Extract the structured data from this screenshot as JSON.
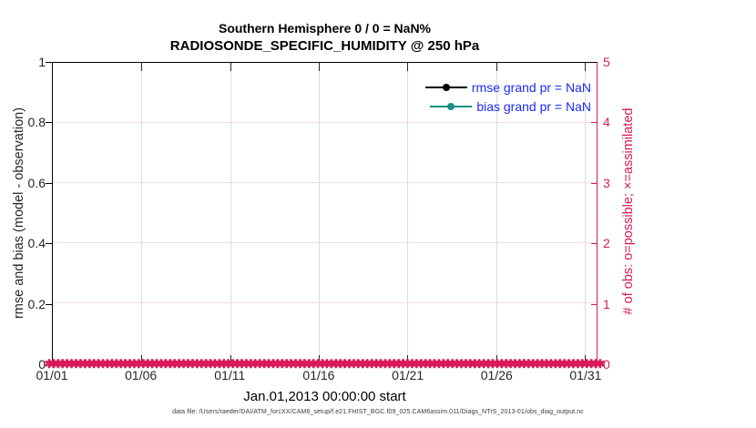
{
  "figure": {
    "footer_note": "data file: /Users/raeder/DAI/ATM_forcXX/CAM6_setup/f.e21.FHIST_BGC.f09_025.CAM6assim.011/Diags_NTrS_2013-01/obs_diag_output.nc"
  },
  "legend": {
    "text_color": "#1A2AF8",
    "items": [
      {
        "label": "rmse grand pr = NaN",
        "color": "#000000",
        "marker": "filled-circle"
      },
      {
        "label": "bias grand pr = NaN",
        "color": "#149087",
        "marker": "filled-circle"
      }
    ]
  },
  "chart_data": {
    "type": "line",
    "title": "Southern Hemisphere 0 / 0 = NaN%",
    "subtitle": "RADIOSONDE_SPECIFIC_HUMIDITY @ 250 hPa",
    "xlabel": "Jan.01,2013 00:00:00 start",
    "x_tick_labels": [
      "01/01",
      "01/06",
      "01/11",
      "01/16",
      "01/21",
      "01/26",
      "01/31"
    ],
    "x_tick_days": [
      0,
      5,
      10,
      15,
      20,
      25,
      30
    ],
    "xlim_days": [
      0,
      30.67
    ],
    "left_axis": {
      "label": "rmse and bias (model - observation)",
      "ticks": [
        0,
        0.2,
        0.4,
        0.6,
        0.8,
        1
      ],
      "lim": [
        0,
        1
      ],
      "color": "#262626"
    },
    "right_axis": {
      "label": "# of obs: o=possible; ×=assimilated",
      "ticks": [
        0,
        1,
        2,
        3,
        4,
        5
      ],
      "lim": [
        0,
        5
      ],
      "color": "#D91A5B"
    },
    "series": [
      {
        "name": "rmse grand pr = NaN",
        "color": "#000000",
        "values": "NaN (no curve drawn)"
      },
      {
        "name": "bias grand pr = NaN",
        "color": "#149087",
        "values": "NaN (no curve drawn)"
      },
      {
        "name": "# of obs (o=possible, ×=assimilated)",
        "color": "#D91A5B",
        "marker": "✱",
        "y_value": 0,
        "point_count": 124
      }
    ],
    "grid": {
      "vertical_color": "#DCDCDC",
      "horizontal_color": "#F7DCE6"
    }
  }
}
